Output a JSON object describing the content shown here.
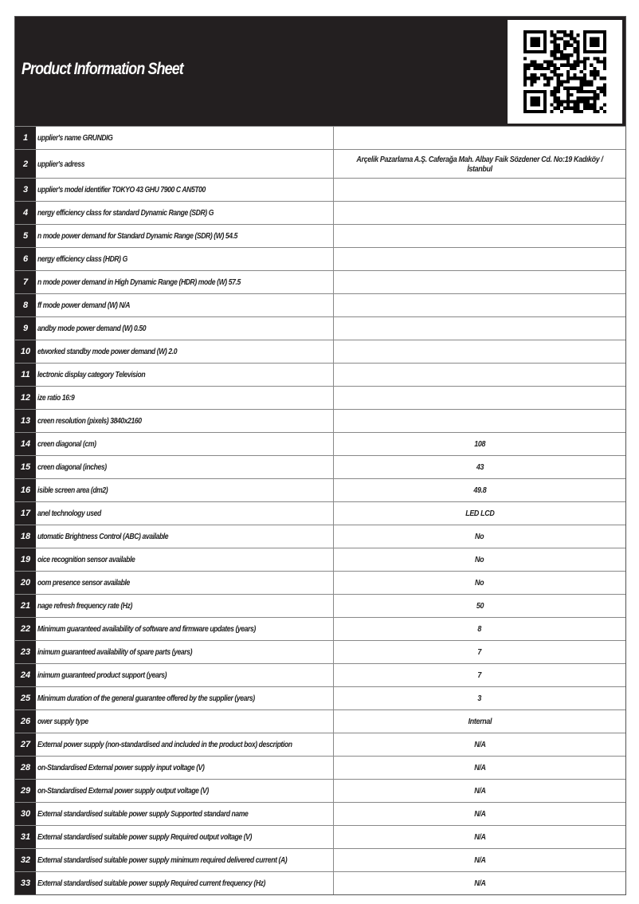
{
  "title": "Product Information Sheet",
  "qr_icon": "qr-code-icon",
  "rows": [
    {
      "num": "1",
      "label": "upplier's name  GRUNDIG",
      "value": ""
    },
    {
      "num": "2",
      "label": "upplier's adress",
      "value": "Arçelik Pazarlama A.Ş. Caferağa Mah. Albay Faik Sözdener Cd. No:19 Kadıköy / İstanbul"
    },
    {
      "num": "3",
      "label": "upplier's model identifier TOKYO 43 GHU 7900 C AN5T00",
      "value": ""
    },
    {
      "num": "4",
      "label": "nergy efficiency class for standard Dynamic Range (SDR) G",
      "value": ""
    },
    {
      "num": "5",
      "label": "n mode power demand for Standard Dynamic Range (SDR) (W) 54.5",
      "value": ""
    },
    {
      "num": "6",
      "label": "nergy efficiency class (HDR) G",
      "value": ""
    },
    {
      "num": "7",
      "label": "n mode power demand in High Dynamic Range (HDR) mode  (W) 57.5",
      "value": ""
    },
    {
      "num": "8",
      "label": "ff mode power demand (W) N/A",
      "value": ""
    },
    {
      "num": "9",
      "label": "andby mode power demand  (W) 0.50",
      "value": ""
    },
    {
      "num": "10",
      "label": "etworked standby mode power demand (W) 2.0",
      "value": ""
    },
    {
      "num": "11",
      "label": "lectronic display category Television",
      "value": ""
    },
    {
      "num": "12",
      "label": "ize ratio 16:9",
      "value": ""
    },
    {
      "num": "13",
      "label": "creen resolution (pixels) 3840x2160",
      "value": ""
    },
    {
      "num": "14",
      "label": "creen diagonal (cm)",
      "value": "108"
    },
    {
      "num": "15",
      "label": "creen diagonal (inches)",
      "value": "43"
    },
    {
      "num": "16",
      "label": "isible screen area (dm2)",
      "value": "49.8"
    },
    {
      "num": "17",
      "label": "anel technology used",
      "value": "LED LCD"
    },
    {
      "num": "18",
      "label": "utomatic Brightness Control (ABC) available",
      "value": "No"
    },
    {
      "num": "19",
      "label": "oice recognition sensor available",
      "value": "No"
    },
    {
      "num": "20",
      "label": "oom presence sensor available",
      "value": "No"
    },
    {
      "num": "21",
      "label": "nage refresh frequency rate (Hz)",
      "value": "50"
    },
    {
      "num": "22",
      "label": "  Minimum guaranteed availability of software and firmware updates (years)",
      "value": "8"
    },
    {
      "num": "23",
      "label": "inimum guaranteed availability of spare parts (years)",
      "value": "7"
    },
    {
      "num": "24",
      "label": "inimum guaranteed product support (years)",
      "value": "7"
    },
    {
      "num": "25",
      "label": "  Minimum duration of the general guarantee offered by the supplier (years)",
      "value": "3"
    },
    {
      "num": "26",
      "label": "ower supply type",
      "value": "Internal"
    },
    {
      "num": "27",
      "label": "  External power supply (non-standardised and included in the product box) description",
      "value": "N/A"
    },
    {
      "num": "28",
      "label": "on-Standardised External power supply input voltage (V)",
      "value": "N/A"
    },
    {
      "num": "29",
      "label": "on-Standardised External power supply output voltage (V)",
      "value": "N/A"
    },
    {
      "num": "30",
      "label": "  External standardised suitable power supply Supported standard name",
      "value": "N/A"
    },
    {
      "num": "31",
      "label": "  External standardised suitable power supply Required output voltage (V)",
      "value": "N/A"
    },
    {
      "num": "32",
      "label": "  External standardised suitable  power supply minimum required delivered current  (A)",
      "value": "N/A"
    },
    {
      "num": "33",
      "label": "  External standardised suitable power supply Required current frequency (Hz)",
      "value": "N/A"
    }
  ]
}
